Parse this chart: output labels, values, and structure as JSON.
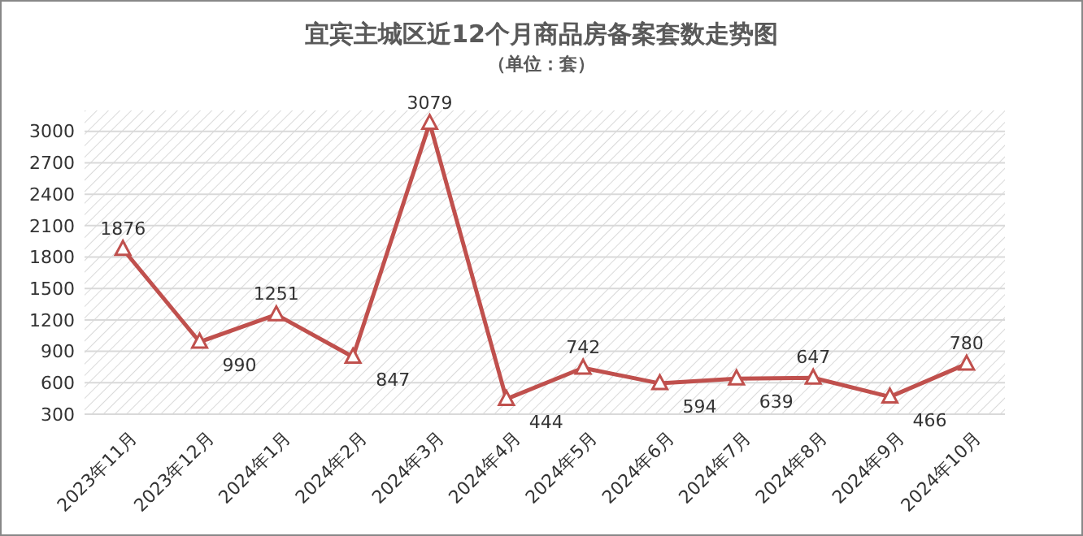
{
  "chart_data": {
    "type": "line",
    "title": "宜宾主城区近12个月商品房备案套数走势图",
    "subtitle": "（单位：套）",
    "categories": [
      "2023年11月",
      "2023年12月",
      "2024年1月",
      "2024年2月",
      "2024年3月",
      "2024年4月",
      "2024年5月",
      "2024年6月",
      "2024年7月",
      "2024年8月",
      "2024年9月",
      "2024年10月"
    ],
    "series": [
      {
        "color": "#c0504d",
        "values": [
          1876,
          990,
          1251,
          847,
          3079,
          444,
          742,
          594,
          639,
          647,
          466,
          780
        ]
      }
    ],
    "ylim": [
      300,
      3200
    ],
    "yticks": [
      300,
      600,
      900,
      1200,
      1500,
      1800,
      2100,
      2400,
      2700,
      3000
    ],
    "grid": "y",
    "marker": "triangle",
    "line_style": "solid",
    "data_labels": true
  }
}
